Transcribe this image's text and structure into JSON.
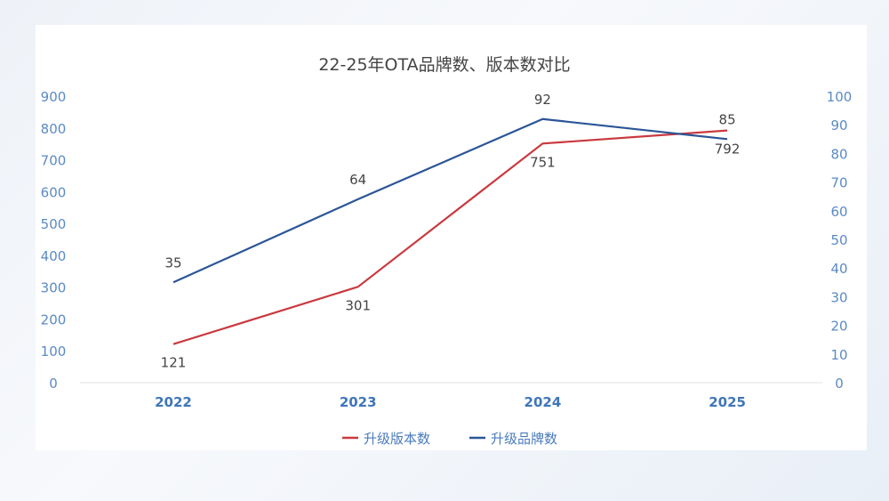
{
  "chart_data": {
    "type": "line",
    "title": "22-25年OTA品牌数、版本数对比",
    "categories": [
      "2022",
      "2023",
      "2024",
      "2025"
    ],
    "y_left": {
      "range": [
        0,
        900
      ],
      "ticks": [
        0,
        100,
        200,
        300,
        400,
        500,
        600,
        700,
        800,
        900
      ]
    },
    "y_right": {
      "range": [
        0,
        100
      ],
      "ticks": [
        0,
        10,
        20,
        30,
        40,
        50,
        60,
        70,
        80,
        90,
        100
      ]
    },
    "grid": false,
    "legend_position": "bottom",
    "series": [
      {
        "name": "升级版本数",
        "axis": "left",
        "color": "#c9393f",
        "values": [
          121,
          301,
          751,
          792
        ]
      },
      {
        "name": "升级品牌数",
        "axis": "right",
        "color": "#2a5597",
        "values": [
          35,
          64,
          92,
          85
        ]
      }
    ]
  }
}
